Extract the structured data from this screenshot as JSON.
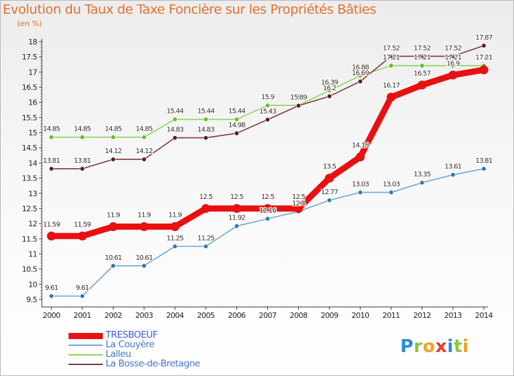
{
  "title": "Evolution du Taux de Taxe Foncière sur les Propriétés Bâties",
  "unit_label": "(en %)",
  "logo": {
    "letters": [
      "P",
      "r",
      "o",
      "x",
      "i",
      "t",
      "i"
    ],
    "colors": [
      "#2a8bd8",
      "#8cc63f",
      "#f2a223",
      "#e83a2e",
      "#2a8bd8",
      "#8cc63f",
      "#f2a223"
    ]
  },
  "chart_data": {
    "type": "line",
    "title": "Evolution du Taux de Taxe Foncière sur les Propriétés Bâties",
    "ylabel": "(en %)",
    "xlabel": "",
    "ylim": [
      9.5,
      18
    ],
    "yticks": [
      "9.5",
      "10",
      "10.5",
      "11",
      "11.5",
      "12",
      "12.5",
      "13",
      "13.5",
      "14",
      "14.5",
      "15",
      "15.5",
      "16",
      "16.5",
      "17",
      "17.5",
      "18"
    ],
    "x": [
      "2000",
      "2001",
      "2002",
      "2003",
      "2004",
      "2005",
      "2006",
      "2007",
      "2008",
      "2009",
      "2010",
      "2011",
      "2012",
      "2013",
      "2014"
    ],
    "grid": false,
    "legend_position": "bottom-left",
    "series": [
      {
        "name": "TRESBOEUF",
        "color": "#e81010",
        "marker_color": "#e81010",
        "emphasis": true,
        "values": [
          11.59,
          11.59,
          11.9,
          11.9,
          11.9,
          12.5,
          12.5,
          12.5,
          12.5,
          13.5,
          14.2,
          16.17,
          16.57,
          16.9,
          17.07
        ],
        "labels": [
          "11.59",
          "11.59",
          "11.9",
          "11.9",
          "11.9",
          "12.5",
          "12.5",
          "12.5",
          "12.5",
          "13.5",
          "14.18",
          "16.17",
          "16.57",
          "16.9",
          "17.07"
        ]
      },
      {
        "name": "La Couyère",
        "color": "#6fa6d6",
        "marker_color": "#2f77b8",
        "emphasis": false,
        "values": [
          9.61,
          9.61,
          10.61,
          10.61,
          11.25,
          11.25,
          11.92,
          12.16,
          12.4,
          12.77,
          13.03,
          13.03,
          13.35,
          13.61,
          13.81
        ],
        "labels": [
          "9.61",
          "9.61",
          "10.61",
          "10.61",
          "11.25",
          "11.25",
          "11.92",
          "12.16",
          "12.4",
          "12.77",
          "13.03",
          "13.03",
          "13.35",
          "13.61",
          "13.81"
        ]
      },
      {
        "name": "Lalleu",
        "color": "#8fd45a",
        "marker_color": "#66bb2e",
        "emphasis": false,
        "values": [
          14.85,
          14.85,
          14.85,
          14.85,
          15.44,
          15.44,
          15.44,
          15.9,
          15.9,
          16.39,
          16.88,
          17.21,
          17.21,
          17.21,
          17.21
        ],
        "labels": [
          "14.85",
          "14.85",
          "14.85",
          "14.85",
          "15.44",
          "15.44",
          "15.44",
          "15.9",
          "15.9",
          "16.39",
          "16.88",
          "17.21",
          "17.21",
          "17.21",
          "17.21"
        ]
      },
      {
        "name": "La Bosse-de-Bretagne",
        "color": "#7d3a3a",
        "marker_color": "#5a1c1c",
        "emphasis": false,
        "values": [
          13.81,
          13.81,
          14.12,
          14.12,
          14.83,
          14.83,
          14.98,
          15.43,
          15.89,
          16.2,
          16.69,
          17.52,
          17.52,
          17.52,
          17.87
        ],
        "labels": [
          "13.81",
          "13.81",
          "14.12",
          "14.12",
          "14.83",
          "14.83",
          "14.98",
          "15.43",
          "15.89",
          "16.2",
          "16.69",
          "17.52",
          "17.52",
          "17.52",
          "17.87"
        ]
      }
    ]
  }
}
